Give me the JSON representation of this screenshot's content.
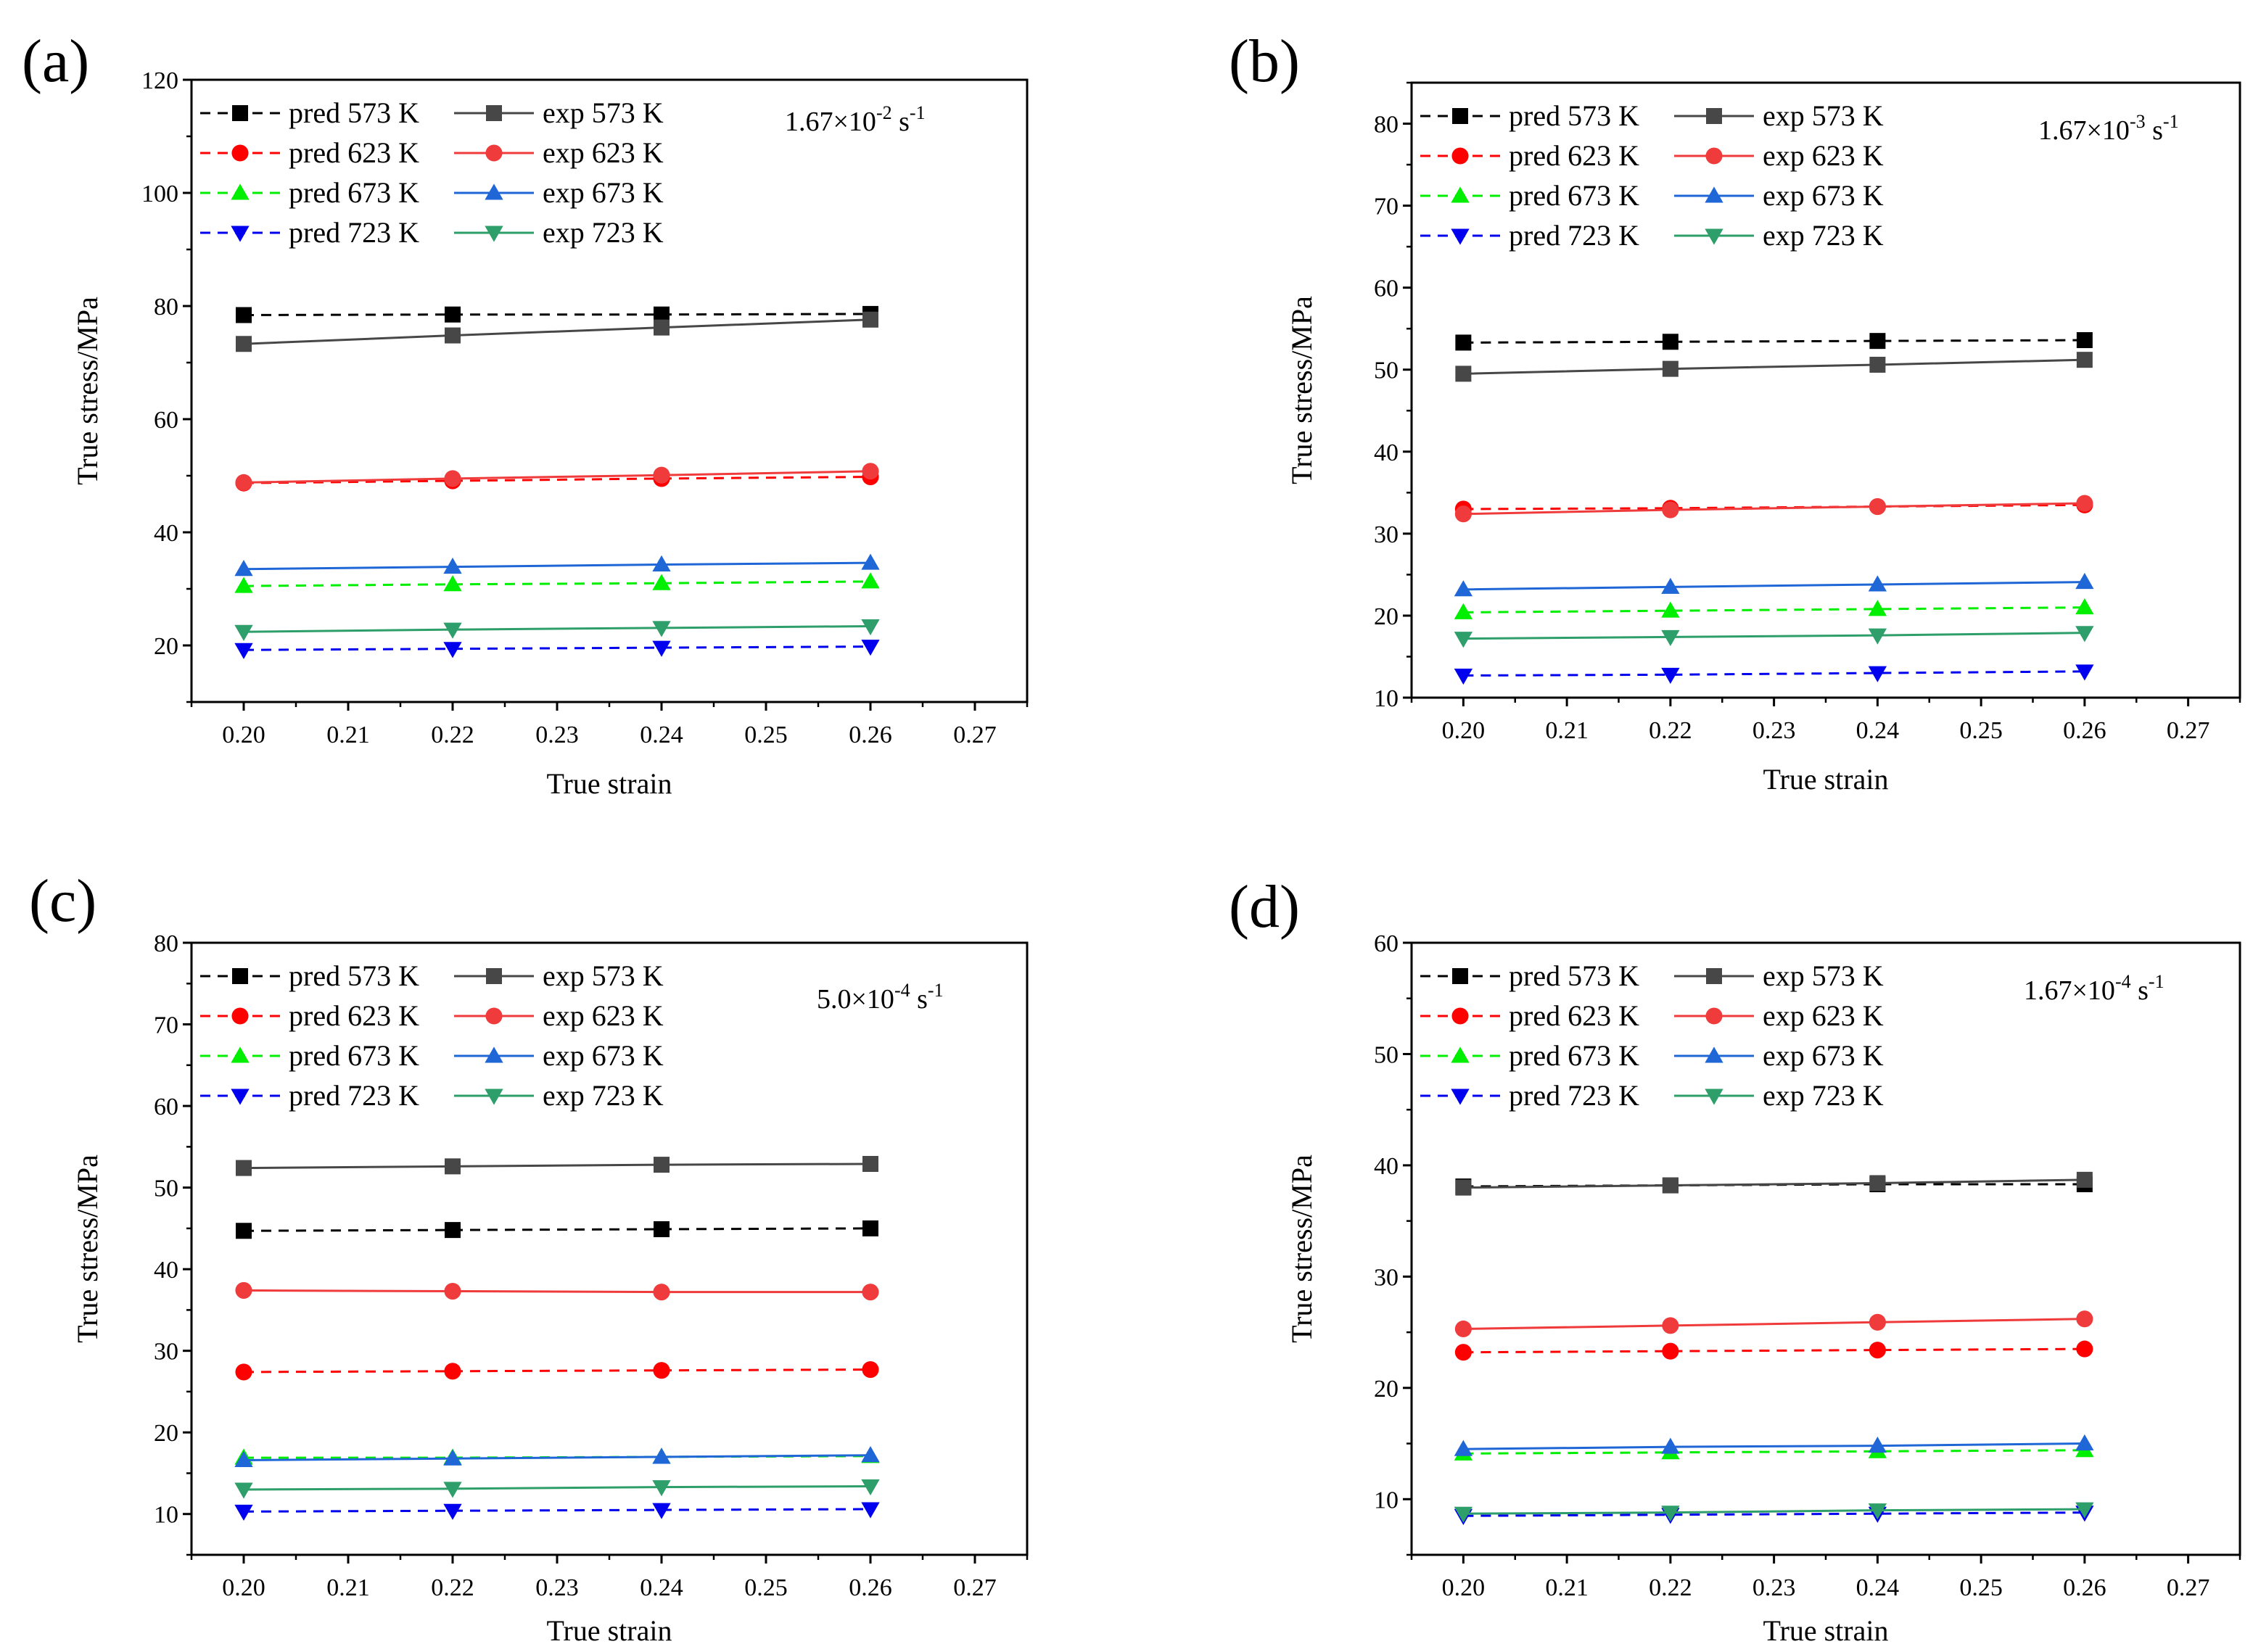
{
  "figure": {
    "xlabel": "True strain",
    "ylabel": "True stress/MPa",
    "x_ticks": [
      "0.20",
      "0.21",
      "0.22",
      "0.23",
      "0.24",
      "0.25",
      "0.26",
      "0.27"
    ]
  },
  "series_styles": [
    {
      "name": "pred 573 K",
      "kind": "pred",
      "color": "#000000",
      "marker": "square"
    },
    {
      "name": "pred 623 K",
      "kind": "pred",
      "color": "#ff0000",
      "marker": "circle"
    },
    {
      "name": "pred 673 K",
      "kind": "pred",
      "color": "#00ee00",
      "marker": "triangle-up"
    },
    {
      "name": "pred 723 K",
      "kind": "pred",
      "color": "#0000ee",
      "marker": "triangle-down"
    },
    {
      "name": "exp 573 K",
      "kind": "exp",
      "color": "#474747",
      "marker": "square"
    },
    {
      "name": "exp 623 K",
      "kind": "exp",
      "color": "#ef3b3b",
      "marker": "circle"
    },
    {
      "name": "exp 673 K",
      "kind": "exp",
      "color": "#1f66d6",
      "marker": "triangle-up"
    },
    {
      "name": "exp 723 K",
      "kind": "exp",
      "color": "#2e9e6a",
      "marker": "triangle-down"
    }
  ],
  "chart_data": [
    {
      "panel": "(a)",
      "type": "line",
      "rate_text": "1.67×10",
      "rate_exp": "-2",
      "rate_unit": " s",
      "rate_unit_exp": "-1",
      "xlabel": "True strain",
      "ylabel": "True stress/MPa",
      "xlim": [
        0.195,
        0.275
      ],
      "ylim": [
        10,
        120
      ],
      "y_ticks": [
        20,
        40,
        60,
        80,
        100,
        120
      ],
      "x": [
        0.2,
        0.22,
        0.24,
        0.26
      ],
      "series": [
        {
          "name": "pred 573 K",
          "values": [
            78.4,
            78.5,
            78.5,
            78.6
          ]
        },
        {
          "name": "pred 623 K",
          "values": [
            48.7,
            49.1,
            49.5,
            49.8
          ]
        },
        {
          "name": "pred 673 K",
          "values": [
            30.5,
            30.8,
            31.0,
            31.3
          ]
        },
        {
          "name": "pred 723 K",
          "values": [
            19.2,
            19.4,
            19.6,
            19.8
          ]
        },
        {
          "name": "exp 573 K",
          "values": [
            73.3,
            74.8,
            76.2,
            77.6
          ]
        },
        {
          "name": "exp 623 K",
          "values": [
            48.8,
            49.5,
            50.1,
            50.8
          ]
        },
        {
          "name": "exp 673 K",
          "values": [
            33.5,
            33.9,
            34.3,
            34.6
          ]
        },
        {
          "name": "exp 723 K",
          "values": [
            22.4,
            22.8,
            23.1,
            23.4
          ]
        }
      ]
    },
    {
      "panel": "(b)",
      "type": "line",
      "rate_text": "1.67×10",
      "rate_exp": "-3",
      "rate_unit": " s",
      "rate_unit_exp": "-1",
      "xlabel": "True strain",
      "ylabel": "True stress/MPa",
      "xlim": [
        0.195,
        0.275
      ],
      "ylim": [
        10,
        85
      ],
      "y_ticks": [
        10,
        20,
        30,
        40,
        50,
        60,
        70,
        80
      ],
      "x": [
        0.2,
        0.22,
        0.24,
        0.26
      ],
      "series": [
        {
          "name": "pred 573 K",
          "values": [
            53.3,
            53.4,
            53.5,
            53.6
          ]
        },
        {
          "name": "pred 623 K",
          "values": [
            33.0,
            33.1,
            33.3,
            33.5
          ]
        },
        {
          "name": "pred 673 K",
          "values": [
            20.4,
            20.6,
            20.8,
            21.0
          ]
        },
        {
          "name": "pred 723 K",
          "values": [
            12.7,
            12.8,
            13.0,
            13.2
          ]
        },
        {
          "name": "exp 573 K",
          "values": [
            49.5,
            50.1,
            50.6,
            51.2
          ]
        },
        {
          "name": "exp 623 K",
          "values": [
            32.4,
            32.9,
            33.3,
            33.7
          ]
        },
        {
          "name": "exp 673 K",
          "values": [
            23.2,
            23.5,
            23.8,
            24.1
          ]
        },
        {
          "name": "exp 723 K",
          "values": [
            17.2,
            17.4,
            17.6,
            17.9
          ]
        }
      ]
    },
    {
      "panel": "(c)",
      "type": "line",
      "rate_text": "5.0×10",
      "rate_exp": "-4",
      "rate_unit": " s",
      "rate_unit_exp": "-1",
      "xlabel": "True strain",
      "ylabel": "True stress/MPa",
      "xlim": [
        0.195,
        0.275
      ],
      "ylim": [
        5,
        80
      ],
      "y_ticks": [
        10,
        20,
        30,
        40,
        50,
        60,
        70,
        80
      ],
      "x": [
        0.2,
        0.22,
        0.24,
        0.26
      ],
      "series": [
        {
          "name": "pred 573 K",
          "values": [
            44.7,
            44.8,
            44.9,
            45.0
          ]
        },
        {
          "name": "pred 623 K",
          "values": [
            27.4,
            27.5,
            27.6,
            27.7
          ]
        },
        {
          "name": "pred 673 K",
          "values": [
            16.9,
            16.9,
            17.0,
            17.1
          ]
        },
        {
          "name": "pred 723 K",
          "values": [
            10.3,
            10.4,
            10.5,
            10.6
          ]
        },
        {
          "name": "exp 573 K",
          "values": [
            52.4,
            52.6,
            52.8,
            52.9
          ]
        },
        {
          "name": "exp 623 K",
          "values": [
            37.4,
            37.3,
            37.2,
            37.2
          ]
        },
        {
          "name": "exp 673 K",
          "values": [
            16.6,
            16.8,
            17.0,
            17.2
          ]
        },
        {
          "name": "exp 723 K",
          "values": [
            13.0,
            13.1,
            13.3,
            13.4
          ]
        }
      ]
    },
    {
      "panel": "(d)",
      "type": "line",
      "rate_text": "1.67×10",
      "rate_exp": "-4",
      "rate_unit": " s",
      "rate_unit_exp": "-1",
      "xlabel": "True strain",
      "ylabel": "True stress/MPa",
      "xlim": [
        0.195,
        0.275
      ],
      "ylim": [
        5,
        60
      ],
      "y_ticks": [
        10,
        20,
        30,
        40,
        50,
        60
      ],
      "x": [
        0.2,
        0.22,
        0.24,
        0.26
      ],
      "series": [
        {
          "name": "pred 573 K",
          "values": [
            38.1,
            38.2,
            38.3,
            38.3
          ]
        },
        {
          "name": "pred 623 K",
          "values": [
            23.2,
            23.3,
            23.4,
            23.5
          ]
        },
        {
          "name": "pred 673 K",
          "values": [
            14.1,
            14.2,
            14.3,
            14.4
          ]
        },
        {
          "name": "pred 723 K",
          "values": [
            8.5,
            8.6,
            8.7,
            8.8
          ]
        },
        {
          "name": "exp 573 K",
          "values": [
            38.0,
            38.2,
            38.4,
            38.7
          ]
        },
        {
          "name": "exp 623 K",
          "values": [
            25.3,
            25.6,
            25.9,
            26.2
          ]
        },
        {
          "name": "exp 673 K",
          "values": [
            14.5,
            14.7,
            14.8,
            15.0
          ]
        },
        {
          "name": "exp 723 K",
          "values": [
            8.7,
            8.8,
            9.0,
            9.1
          ]
        }
      ]
    }
  ]
}
